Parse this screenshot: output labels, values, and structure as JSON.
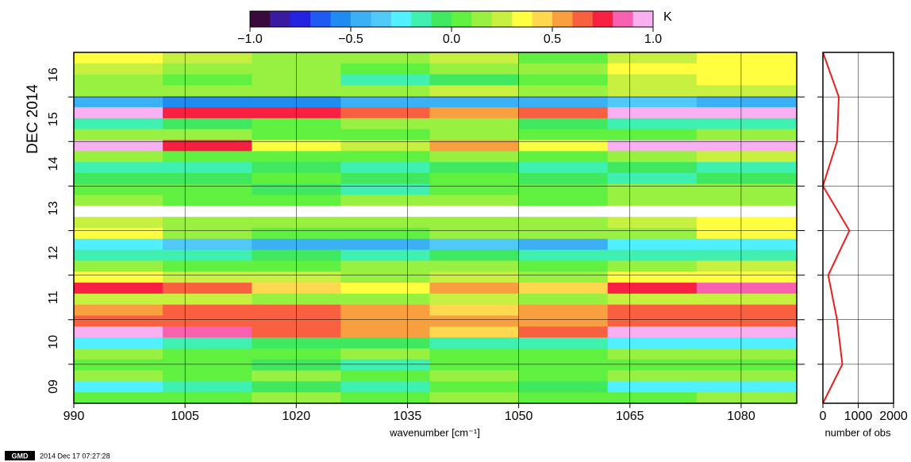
{
  "chart_data": [
    {
      "type": "heatmap",
      "xlabel": "wavenumber [cm⁻¹]",
      "ylabel": "DEC 2014",
      "x_edges": [
        990,
        1002,
        1014,
        1026,
        1038,
        1050,
        1062,
        1074,
        1087.5
      ],
      "xlim": [
        990,
        1087.5
      ],
      "xticks": [
        990,
        1005,
        1020,
        1035,
        1050,
        1065,
        1080
      ],
      "ylim": [
        9.125,
        17
      ],
      "yticks": [
        {
          "value": 9.5,
          "label": "09"
        },
        {
          "value": 10.5,
          "label": "10"
        },
        {
          "value": 11.5,
          "label": "11"
        },
        {
          "value": 12.5,
          "label": "12"
        },
        {
          "value": 13.5,
          "label": "13"
        },
        {
          "value": 14.5,
          "label": "14"
        },
        {
          "value": 15.5,
          "label": "15"
        },
        {
          "value": 16.5,
          "label": "16"
        }
      ],
      "ygrid": [
        10,
        11,
        12,
        13,
        14,
        15,
        16
      ],
      "grid": true,
      "z": [
        [
          0.3,
          0.2,
          0.1,
          0.1,
          0.2,
          0.0,
          0.2,
          0.3
        ],
        [
          0.2,
          0.1,
          0.1,
          0.0,
          0.1,
          0.1,
          0.3,
          0.3
        ],
        [
          0.1,
          0.0,
          0.1,
          -0.2,
          -0.1,
          0.0,
          0.2,
          0.3
        ],
        [
          0.1,
          0.1,
          0.1,
          0.1,
          0.2,
          0.1,
          0.2,
          0.2
        ],
        [
          -0.5,
          -0.6,
          -0.6,
          -0.5,
          -0.5,
          -0.5,
          -0.4,
          -0.5
        ],
        [
          0.9,
          0.7,
          0.7,
          0.6,
          0.5,
          0.6,
          0.9,
          0.9
        ],
        [
          -0.2,
          -0.1,
          0.0,
          0.1,
          0.1,
          -0.1,
          -0.2,
          -0.2
        ],
        [
          0.1,
          0.1,
          0.0,
          0.0,
          0.1,
          0.0,
          0.0,
          0.1
        ],
        [
          0.9,
          0.7,
          0.3,
          0.2,
          0.5,
          0.3,
          0.9,
          0.95
        ],
        [
          0.1,
          0.0,
          0.0,
          0.0,
          0.1,
          0.0,
          0.1,
          0.2
        ],
        [
          -0.2,
          -0.2,
          -0.1,
          -0.2,
          -0.1,
          -0.2,
          -0.1,
          -0.2
        ],
        [
          -0.1,
          -0.1,
          0.0,
          -0.1,
          0.0,
          -0.1,
          -0.2,
          -0.1
        ],
        [
          0.0,
          0.0,
          -0.1,
          -0.2,
          0.0,
          0.0,
          0.1,
          0.1
        ],
        [
          0.1,
          0.0,
          0.0,
          0.1,
          0.1,
          0.0,
          0.1,
          0.1
        ],
        [
          null,
          null,
          null,
          null,
          null,
          null,
          null,
          null
        ],
        [
          0.2,
          0.1,
          0.1,
          0.1,
          0.1,
          0.1,
          0.2,
          0.3
        ],
        [
          0.3,
          0.1,
          0.0,
          0.0,
          0.1,
          0.1,
          0.1,
          0.3
        ],
        [
          -0.3,
          -0.4,
          -0.5,
          -0.5,
          -0.4,
          -0.5,
          -0.3,
          -0.3
        ],
        [
          -0.2,
          -0.2,
          -0.1,
          -0.2,
          -0.1,
          -0.2,
          -0.2,
          -0.2
        ],
        [
          0.1,
          0.0,
          0.0,
          0.1,
          0.1,
          0.0,
          0.1,
          0.2
        ],
        [
          0.3,
          0.2,
          0.2,
          0.1,
          0.2,
          0.1,
          0.3,
          0.3
        ],
        [
          0.7,
          0.6,
          0.4,
          0.3,
          0.5,
          0.4,
          0.7,
          0.8
        ],
        [
          0.2,
          0.2,
          0.1,
          0.1,
          0.2,
          0.1,
          0.2,
          0.2
        ],
        [
          0.5,
          0.6,
          0.6,
          0.5,
          0.4,
          0.5,
          0.6,
          0.6
        ],
        [
          0.6,
          0.6,
          0.6,
          0.5,
          0.5,
          0.5,
          0.6,
          0.6
        ],
        [
          0.9,
          0.8,
          0.6,
          0.5,
          0.4,
          0.6,
          0.9,
          0.95
        ],
        [
          -0.3,
          -0.2,
          -0.1,
          -0.1,
          -0.2,
          -0.2,
          -0.3,
          -0.3
        ],
        [
          0.1,
          0.0,
          0.0,
          0.1,
          0.0,
          0.0,
          0.1,
          0.1
        ],
        [
          0.0,
          0.0,
          -0.1,
          -0.2,
          0.0,
          0.0,
          0.0,
          0.0
        ],
        [
          0.1,
          0.0,
          0.1,
          0.0,
          0.1,
          0.0,
          0.1,
          0.1
        ],
        [
          -0.3,
          -0.2,
          -0.1,
          -0.2,
          0.0,
          -0.1,
          -0.3,
          -0.3
        ],
        [
          0.0,
          0.0,
          0.1,
          0.0,
          0.1,
          0.0,
          0.0,
          0.1
        ]
      ],
      "colorbar": {
        "unit": "K",
        "lim": [
          -1,
          1
        ],
        "ticks": [
          {
            "value": -1,
            "label": "−1.0"
          },
          {
            "value": -0.5,
            "label": "−0.5"
          },
          {
            "value": 0,
            "label": "0.0"
          },
          {
            "value": 0.5,
            "label": "0.5"
          },
          {
            "value": 1,
            "label": "1.0"
          }
        ],
        "colors": [
          "#3a0a3a",
          "#3a1aa0",
          "#2222e0",
          "#1e5af0",
          "#1e8cf0",
          "#3cb0f5",
          "#50c8f8",
          "#50f0ff",
          "#40f0b0",
          "#40e860",
          "#60f040",
          "#98f040",
          "#c8f040",
          "#ffff40",
          "#ffd850",
          "#f8a040",
          "#f86040",
          "#f82040",
          "#f860b0",
          "#f8b0f0"
        ],
        "missing_color": "#ffffff"
      }
    },
    {
      "type": "line",
      "xlabel": "number of obs",
      "values": [
        0,
        450,
        400,
        0,
        750,
        150,
        400,
        550,
        0
      ],
      "y": [
        17,
        16,
        15,
        14,
        13,
        12,
        11,
        10,
        9.125
      ],
      "color": "#e8201c",
      "xlim": [
        0,
        2000
      ],
      "xticks": [
        0,
        1000,
        2000
      ],
      "ylim": [
        9.125,
        17
      ],
      "ygrid": [
        10,
        11,
        12,
        13,
        14,
        15,
        16
      ],
      "grid": true
    }
  ],
  "footer": {
    "badge": "GMD",
    "timestamp": "2014 Dec 17 07:27:28"
  }
}
